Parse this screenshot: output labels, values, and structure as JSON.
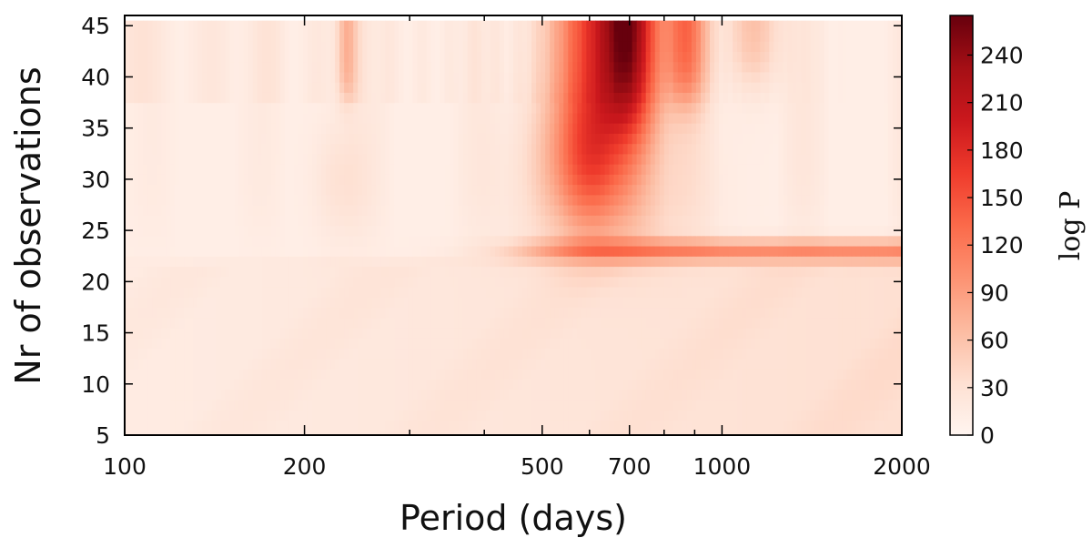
{
  "chart_data": {
    "type": "heatmap",
    "title": "",
    "xlabel": "Period (days)",
    "ylabel": "Nr of observations",
    "x_scale": "log",
    "xlim": [
      100,
      2000
    ],
    "ylim": [
      5,
      46
    ],
    "x_ticks": [
      100,
      200,
      500,
      700,
      1000,
      2000
    ],
    "y_ticks": [
      5,
      10,
      15,
      20,
      25,
      30,
      35,
      40,
      45
    ],
    "y_rows": [
      5,
      6,
      7,
      8,
      9,
      10,
      11,
      12,
      13,
      14,
      15,
      16,
      17,
      18,
      19,
      20,
      21,
      22,
      23,
      24,
      25,
      26,
      27,
      28,
      29,
      30,
      31,
      32,
      33,
      34,
      35,
      36,
      37,
      38,
      39,
      40,
      41,
      42,
      43,
      44,
      45
    ],
    "colorbar": {
      "label": "log P",
      "min": 0,
      "max": 265,
      "ticks": [
        0,
        30,
        60,
        90,
        120,
        150,
        180,
        210,
        240
      ],
      "colormap": "Reds",
      "color_stops": [
        "#fff5f0",
        "#fee0d2",
        "#fcbba1",
        "#fc9272",
        "#fb6a4a",
        "#ef3b2c",
        "#cb181d",
        "#a50f15",
        "#67000d"
      ]
    },
    "features": [
      {
        "description": "strongest peak",
        "period_days": 700,
        "observations_from": 35,
        "observations_to": 45,
        "logP": 265
      },
      {
        "description": "strong band",
        "period_days": 600,
        "observations_from": 27,
        "observations_to": 45,
        "logP": 210
      },
      {
        "description": "horizontal band",
        "period_days_from": 500,
        "period_days_to": 2000,
        "observations": 23,
        "logP": 120
      },
      {
        "description": "secondary peak",
        "period_days": 870,
        "observations_from": 38,
        "observations_to": 45,
        "logP": 170
      },
      {
        "description": "aliases",
        "period_days": 235,
        "observations_from": 38,
        "observations_to": 45,
        "logP": 100
      },
      {
        "description": "background",
        "observations_from": 5,
        "observations_to": 22,
        "logP": 15
      }
    ]
  }
}
